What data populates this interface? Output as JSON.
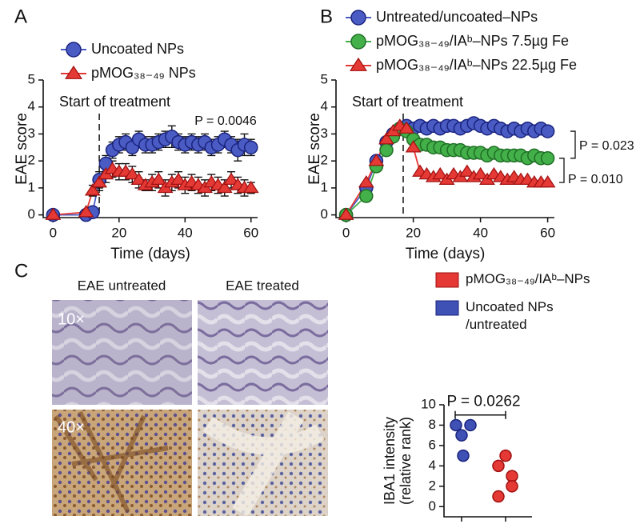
{
  "panel_labels": [
    "A",
    "B",
    "C"
  ],
  "chart_data": [
    {
      "type": "line",
      "x_label": "Time (days)",
      "y_label": "EAE score",
      "x": [
        0,
        10,
        12,
        14,
        16,
        18,
        20,
        22,
        24,
        26,
        28,
        30,
        32,
        34,
        36,
        38,
        40,
        42,
        44,
        46,
        48,
        50,
        52,
        54,
        56,
        58,
        60
      ],
      "xlim": [
        -3,
        62
      ],
      "ylim": [
        -0.1,
        5
      ],
      "xticks": [
        0,
        20,
        40,
        60
      ],
      "yticks": [
        0,
        1,
        2,
        3,
        4,
        5
      ],
      "series": [
        {
          "name": "Uncoated NPs",
          "color": "#4a5cc4",
          "marker": "circle",
          "values": [
            0,
            0,
            0.1,
            1.3,
            1.9,
            2.4,
            2.6,
            2.7,
            2.5,
            2.8,
            2.6,
            2.6,
            2.7,
            2.8,
            2.9,
            2.7,
            2.6,
            2.7,
            2.6,
            2.7,
            2.5,
            2.6,
            2.8,
            2.6,
            2.4,
            2.6,
            2.5
          ],
          "errors": [
            0,
            0,
            0.1,
            0.3,
            0.3,
            0.3,
            0.3,
            0.3,
            0.3,
            0.3,
            0.3,
            0.3,
            0.3,
            0.3,
            0.4,
            0.3,
            0.3,
            0.3,
            0.3,
            0.3,
            0.3,
            0.3,
            0.3,
            0.3,
            0.4,
            0.4,
            0.3
          ]
        },
        {
          "name": "pMOG₃₈₋₄₉ NPs",
          "color": "#e53935",
          "marker": "triangle",
          "values": [
            0,
            0.1,
            0.9,
            1.2,
            1.5,
            1.7,
            1.6,
            1.6,
            1.5,
            1.3,
            1.1,
            1.2,
            1.3,
            1.0,
            1.2,
            1.3,
            1.1,
            1.2,
            1.1,
            1.0,
            1.2,
            1.1,
            1.0,
            1.3,
            1.1,
            1.0,
            1.0
          ],
          "errors": [
            0,
            0.1,
            0.2,
            0.3,
            0.3,
            0.3,
            0.3,
            0.3,
            0.3,
            0.3,
            0.2,
            0.3,
            0.3,
            0.3,
            0.3,
            0.3,
            0.3,
            0.3,
            0.3,
            0.3,
            0.3,
            0.3,
            0.3,
            0.3,
            0.3,
            0.3,
            0.2
          ]
        }
      ],
      "annotations": [
        {
          "text": "Start of treatment",
          "x": 14
        }
      ],
      "p_values": [
        "P = 0.0046"
      ]
    },
    {
      "type": "line",
      "x_label": "Time (days)",
      "y_label": "EAE score",
      "x": [
        0,
        6,
        9,
        12,
        14,
        16,
        18,
        20,
        22,
        24,
        26,
        28,
        30,
        32,
        34,
        36,
        38,
        40,
        42,
        44,
        46,
        48,
        50,
        52,
        54,
        56,
        58,
        60
      ],
      "xlim": [
        -3,
        62
      ],
      "ylim": [
        -0.1,
        5
      ],
      "xticks": [
        0,
        20,
        40,
        60
      ],
      "yticks": [
        0,
        1,
        2,
        3,
        4,
        5
      ],
      "series": [
        {
          "name": "Untreated/uncoated–NPs",
          "color": "#4a5cc4",
          "marker": "circle",
          "values": [
            0,
            1.0,
            2.0,
            2.7,
            3.0,
            3.2,
            3.3,
            3.2,
            3.3,
            3.2,
            3.3,
            3.2,
            3.3,
            3.3,
            3.2,
            3.3,
            3.4,
            3.3,
            3.2,
            3.3,
            3.2,
            3.1,
            3.2,
            3.1,
            3.2,
            3.1,
            3.2,
            3.1
          ]
        },
        {
          "name": "pMOG₃₈₋₄₉/IAᵇ–NPs 7.5µg Fe",
          "color": "#43b049",
          "marker": "circle",
          "values": [
            0,
            0.7,
            1.8,
            2.4,
            2.9,
            3.2,
            3.1,
            2.8,
            2.6,
            2.6,
            2.5,
            2.5,
            2.4,
            2.4,
            2.4,
            2.3,
            2.3,
            2.3,
            2.2,
            2.3,
            2.2,
            2.2,
            2.2,
            2.2,
            2.1,
            2.2,
            2.1,
            2.1
          ]
        },
        {
          "name": "pMOG₃₈₋₄₉/IAᵇ–NPs 22.5µg Fe",
          "color": "#e53935",
          "marker": "triangle",
          "values": [
            0,
            1.2,
            2.0,
            2.8,
            3.1,
            3.3,
            3.2,
            2.5,
            1.6,
            1.5,
            1.4,
            1.5,
            1.3,
            1.5,
            1.4,
            1.6,
            1.4,
            1.5,
            1.3,
            1.5,
            1.4,
            1.3,
            1.4,
            1.3,
            1.3,
            1.2,
            1.2,
            1.2
          ]
        }
      ],
      "annotations": [
        {
          "text": "Start of treatment",
          "x": 17
        }
      ],
      "p_values": [
        "P = 0.023",
        "P = 0.010"
      ]
    },
    {
      "type": "dot",
      "y_label": [
        "IBA1 intensity",
        "(relative rank)"
      ],
      "ylim": [
        -1,
        10
      ],
      "yticks": [
        0,
        2,
        4,
        6,
        8,
        10
      ],
      "series": [
        {
          "name": "pMOG₃₈₋₄₉/IAᵇ–NPs",
          "color": "#e53935",
          "values": [
            5,
            4,
            3,
            2,
            1
          ]
        },
        {
          "name": "Uncoated NPs /untreated",
          "color": "#3f51b5",
          "values": [
            8,
            8,
            7,
            5
          ]
        }
      ],
      "p_values": [
        "P = 0.0262"
      ]
    }
  ],
  "micrographs": {
    "columns": [
      "EAE untreated",
      "EAE treated"
    ],
    "rows": [
      "10×",
      "40×"
    ]
  }
}
